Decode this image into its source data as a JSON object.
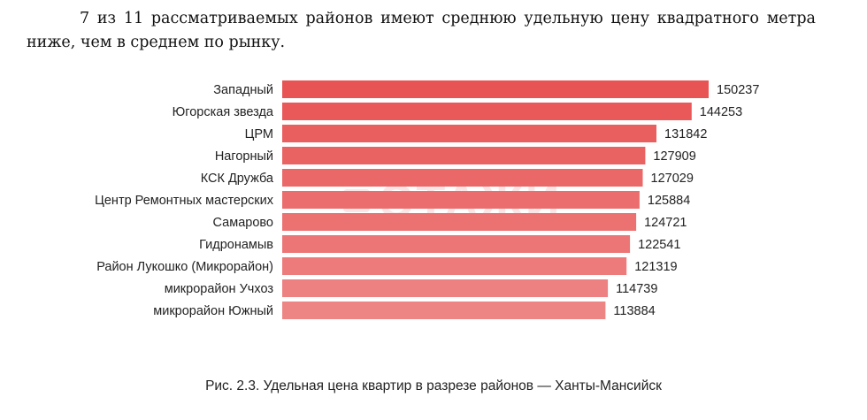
{
  "paragraph": "7 из 11 рассматриваемых районов имеют среднюю удельную цену квадратного метра ниже, чем в среднем по рынку.",
  "caption": "Рис. 2.3. Удельная цена квартир в разрезе районов — Ханты-Мансийск",
  "colors": {
    "bar_top": "#e85454",
    "bar_bottom": "#ee8585",
    "watermark": "#f6d3d3"
  },
  "chart_data": {
    "type": "bar",
    "orientation": "horizontal",
    "title": "",
    "xlabel": "",
    "ylabel": "",
    "xlim": [
      0,
      150237
    ],
    "grid": false,
    "categories": [
      "Западный",
      "Югорская звезда",
      "ЦРМ",
      "Нагорный",
      "КСК Дружба",
      "Центр Ремонтных мастерских",
      "Самарово",
      "Гидронамыв",
      "Район Лукошко (Микрорайон)",
      "микрорайон Учхоз",
      "микрорайон Южный"
    ],
    "values": [
      150237,
      144253,
      131842,
      127909,
      127029,
      125884,
      124721,
      122541,
      121319,
      114739,
      113884
    ]
  }
}
